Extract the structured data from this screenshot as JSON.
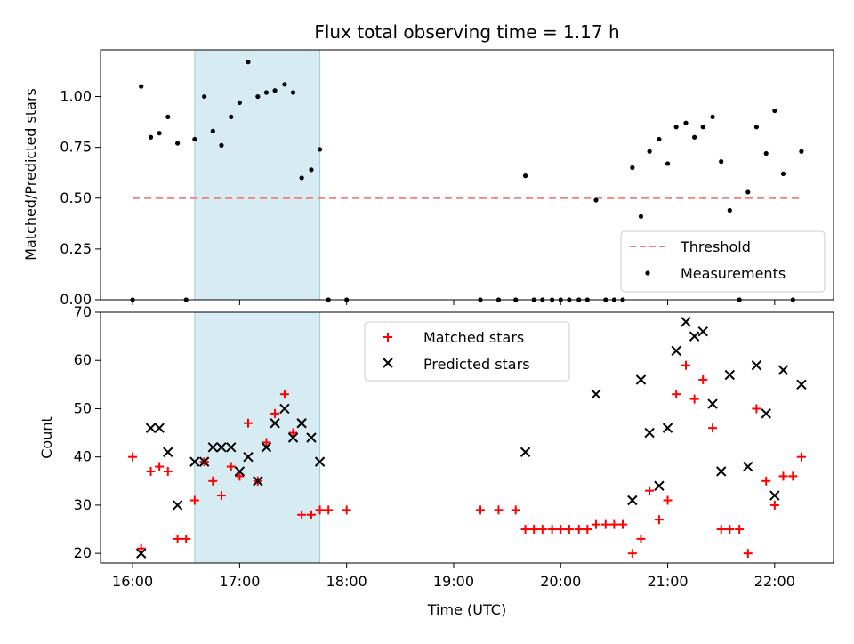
{
  "chart_data": [
    {
      "type": "scatter",
      "title": "Flux total observing time = 1.17 h",
      "ylabel": "Matched/Predicted stars",
      "xlabel": "",
      "xlim": [
        15.7,
        22.55
      ],
      "ylim": [
        0.0,
        1.23
      ],
      "y_ticks": [
        "0.00",
        "0.25",
        "0.50",
        "0.75",
        "1.00"
      ],
      "x_tick_values": [
        16,
        17,
        18,
        19,
        20,
        21,
        22
      ],
      "shaded_interval": [
        16.58,
        17.75
      ],
      "threshold": {
        "name": "Threshold",
        "y": 0.5,
        "x_range": [
          16.0,
          22.25
        ],
        "color": "#f08080"
      },
      "series": [
        {
          "name": "Measurements",
          "color": "#000000",
          "x": [
            16.0,
            16.08,
            16.17,
            16.25,
            16.33,
            16.42,
            16.5,
            16.58,
            16.67,
            16.75,
            16.83,
            16.92,
            17.0,
            17.08,
            17.17,
            17.25,
            17.33,
            17.42,
            17.5,
            17.58,
            17.67,
            17.75,
            17.83,
            18.0,
            19.25,
            19.42,
            19.58,
            19.67,
            19.75,
            19.83,
            19.92,
            20.0,
            20.08,
            20.17,
            20.25,
            20.33,
            20.42,
            20.5,
            20.58,
            20.67,
            20.75,
            20.83,
            20.92,
            21.0,
            21.08,
            21.17,
            21.25,
            21.33,
            21.42,
            21.5,
            21.58,
            21.67,
            21.75,
            21.83,
            21.92,
            22.0,
            22.08,
            22.17,
            22.25
          ],
          "y": [
            0.0,
            1.05,
            0.8,
            0.82,
            0.9,
            0.77,
            0.0,
            0.79,
            1.0,
            0.83,
            0.76,
            0.9,
            0.97,
            1.17,
            1.0,
            1.02,
            1.03,
            1.06,
            1.02,
            0.6,
            0.64,
            0.74,
            0.0,
            0.0,
            0.0,
            0.0,
            0.0,
            0.61,
            0.0,
            0.0,
            0.0,
            0.0,
            0.0,
            0.0,
            0.0,
            0.49,
            0.0,
            0.0,
            0.0,
            0.65,
            0.41,
            0.73,
            0.79,
            0.67,
            0.85,
            0.87,
            0.8,
            0.85,
            0.9,
            0.68,
            0.44,
            0.0,
            0.53,
            0.85,
            0.72,
            0.93,
            0.62,
            0.0,
            0.73
          ]
        }
      ],
      "legend": {
        "placement": "lower-right",
        "entries": [
          "Threshold",
          "Measurements"
        ]
      }
    },
    {
      "type": "scatter",
      "title": "",
      "ylabel": "Count",
      "xlabel": "Time (UTC)",
      "xlim": [
        15.7,
        22.55
      ],
      "ylim": [
        18,
        70
      ],
      "y_tick_values": [
        20,
        30,
        40,
        50,
        60,
        70
      ],
      "x_ticks": [
        "16:00",
        "17:00",
        "18:00",
        "19:00",
        "20:00",
        "21:00",
        "22:00"
      ],
      "x_tick_values": [
        16,
        17,
        18,
        19,
        20,
        21,
        22
      ],
      "shaded_interval": [
        16.58,
        17.75
      ],
      "series": [
        {
          "name": "Matched stars",
          "marker": "plus",
          "color": "#ff0000",
          "x": [
            16.0,
            16.08,
            16.17,
            16.25,
            16.33,
            16.42,
            16.5,
            16.58,
            16.67,
            16.75,
            16.83,
            16.92,
            17.0,
            17.08,
            17.17,
            17.25,
            17.33,
            17.42,
            17.5,
            17.58,
            17.67,
            17.75,
            17.83,
            18.0,
            19.25,
            19.42,
            19.58,
            19.67,
            19.75,
            19.83,
            19.92,
            20.0,
            20.08,
            20.17,
            20.25,
            20.33,
            20.42,
            20.5,
            20.58,
            20.67,
            20.75,
            20.83,
            20.92,
            21.0,
            21.08,
            21.17,
            21.25,
            21.33,
            21.42,
            21.5,
            21.58,
            21.67,
            21.75,
            21.83,
            21.92,
            22.0,
            22.08,
            22.17,
            22.25
          ],
          "y": [
            40,
            21,
            37,
            38,
            37,
            23,
            23,
            31,
            39,
            35,
            32,
            38,
            36,
            47,
            35,
            43,
            49,
            53,
            45,
            28,
            28,
            29,
            29,
            29,
            29,
            29,
            29,
            25,
            25,
            25,
            25,
            25,
            25,
            25,
            25,
            26,
            26,
            26,
            26,
            20,
            23,
            33,
            27,
            31,
            53,
            59,
            52,
            56,
            46,
            25,
            25,
            25,
            20,
            50,
            35,
            30,
            36,
            36,
            40
          ]
        },
        {
          "name": "Predicted stars",
          "marker": "x",
          "color": "#000000",
          "x": [
            16.08,
            16.17,
            16.25,
            16.33,
            16.42,
            16.58,
            16.67,
            16.75,
            16.83,
            16.92,
            17.0,
            17.08,
            17.17,
            17.25,
            17.33,
            17.42,
            17.5,
            17.58,
            17.67,
            17.75,
            19.67,
            20.33,
            20.67,
            20.75,
            20.83,
            20.92,
            21.0,
            21.08,
            21.17,
            21.25,
            21.33,
            21.42,
            21.5,
            21.58,
            21.75,
            21.83,
            21.92,
            22.0,
            22.08,
            22.25
          ],
          "y": [
            20,
            46,
            46,
            41,
            30,
            39,
            39,
            42,
            42,
            42,
            37,
            40,
            35,
            42,
            47,
            50,
            44,
            47,
            44,
            39,
            41,
            53,
            31,
            56,
            45,
            34,
            46,
            62,
            68,
            65,
            66,
            51,
            37,
            57,
            38,
            59,
            49,
            32,
            58,
            55
          ]
        }
      ],
      "legend": {
        "placement": "upper-center",
        "entries": [
          "Matched stars",
          "Predicted stars"
        ]
      }
    }
  ]
}
